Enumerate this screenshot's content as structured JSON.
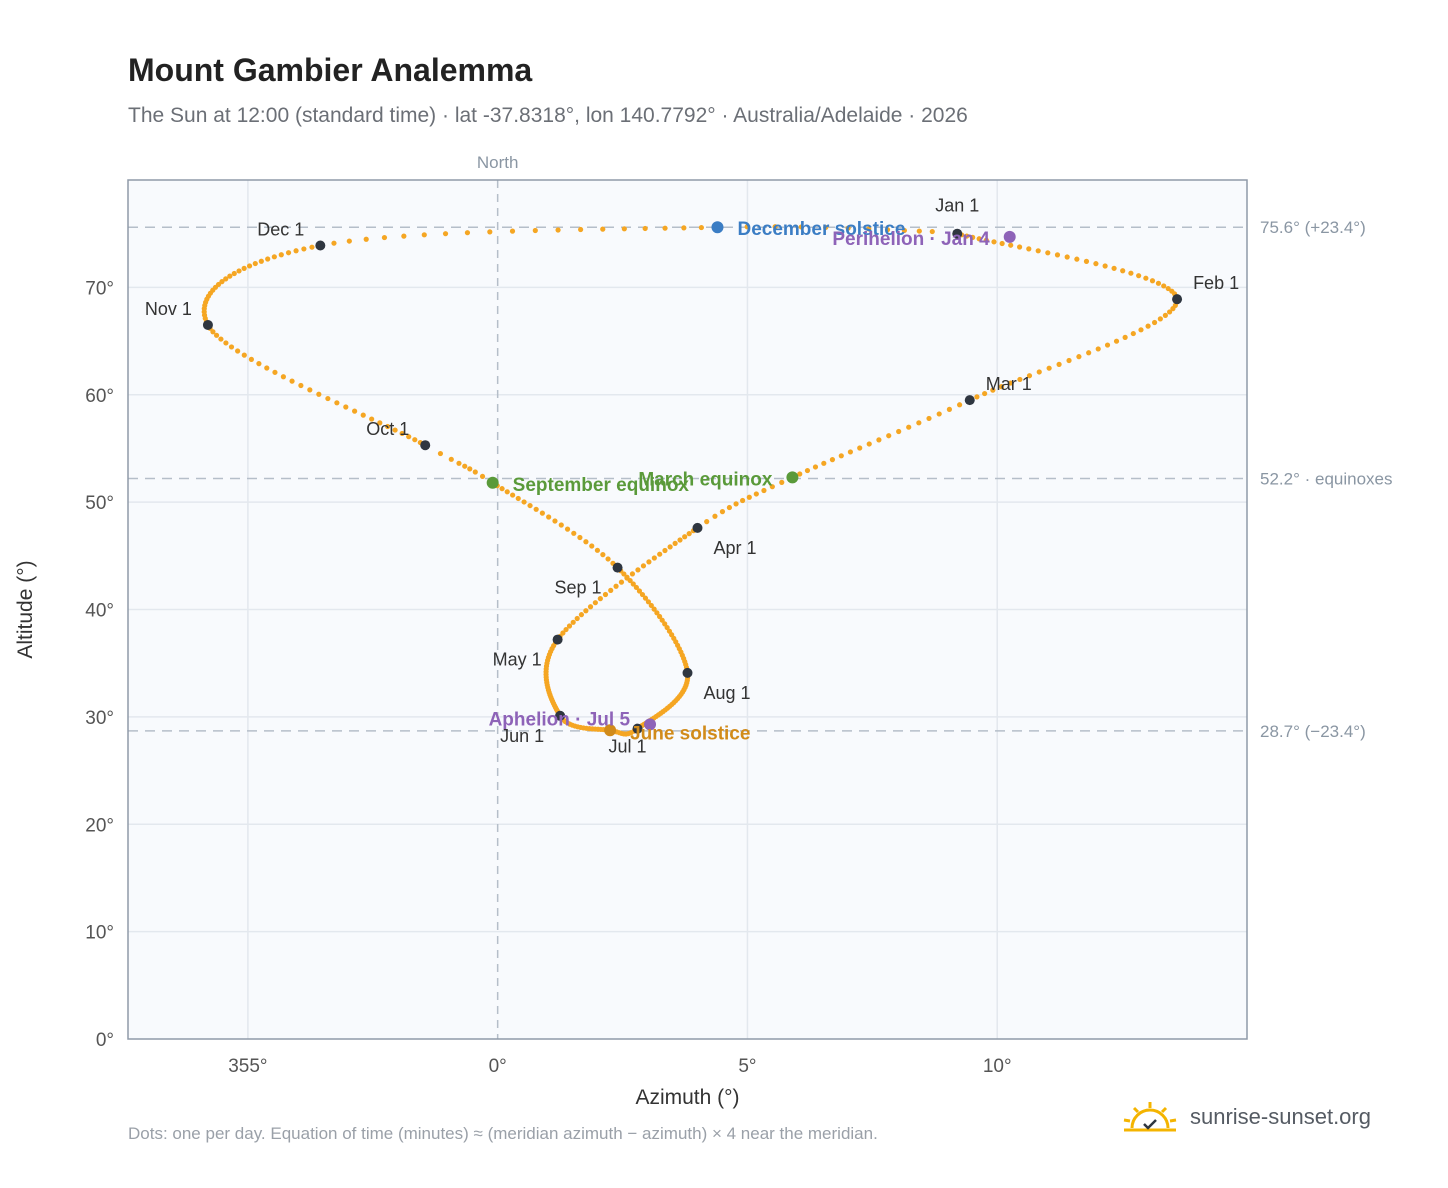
{
  "title": "Mount Gambier Analemma",
  "subtitle": "The Sun at 12:00 (standard time) · lat -37.8318°, lon 140.7792° · Australia/Adelaide · 2026",
  "footer": "Dots: one per day. Equation of time (minutes) ≈ (meridian azimuth − azimuth) × 4 near the meridian.",
  "brand": "sunrise-sunset.org",
  "colors": {
    "curve": "#f5a623",
    "month_marker": "#2f3640",
    "december_solstice": "#3b7dc4",
    "june_solstice": "#d18b1a",
    "equinox": "#5a9a3a",
    "apsis": "#8e63b8",
    "reference_line": "#b5bec9"
  },
  "chart_data": {
    "type": "scatter",
    "xlabel": "Azimuth (°)",
    "ylabel": "Altitude (°)",
    "xlim": [
      352.6,
      15.0
    ],
    "ylim": [
      0,
      80
    ],
    "x_ticks": [
      "355°",
      "0°",
      "5°",
      "10°"
    ],
    "y_ticks": [
      "0°",
      "10°",
      "20°",
      "30°",
      "40°",
      "50°",
      "60°",
      "70°"
    ],
    "north_label": "North",
    "reference_lines": [
      {
        "altitude": 75.6,
        "label": "75.6° (+23.4°)"
      },
      {
        "altitude": 52.2,
        "label": "52.2° · equinoxes"
      },
      {
        "altitude": 28.7,
        "label": "28.7° (−23.4°)"
      }
    ],
    "curve_key_points": [
      {
        "day": 1,
        "azimuth": 9.2,
        "altitude": 75.0
      },
      {
        "day": 32,
        "azimuth": 13.6,
        "altitude": 68.9
      },
      {
        "day": 60,
        "azimuth": 9.45,
        "altitude": 59.5
      },
      {
        "day": 79,
        "azimuth": 5.9,
        "altitude": 52.3
      },
      {
        "day": 91,
        "azimuth": 4.0,
        "altitude": 47.6
      },
      {
        "day": 121,
        "azimuth": 1.2,
        "altitude": 37.2
      },
      {
        "day": 152,
        "azimuth": 1.25,
        "altitude": 30.1
      },
      {
        "day": 172,
        "azimuth": 2.25,
        "altitude": 28.75
      },
      {
        "day": 182,
        "azimuth": 2.8,
        "altitude": 28.9
      },
      {
        "day": 213,
        "azimuth": 3.8,
        "altitude": 34.1
      },
      {
        "day": 244,
        "azimuth": 2.4,
        "altitude": 43.9
      },
      {
        "day": 266,
        "azimuth": -0.1,
        "altitude": 51.8
      },
      {
        "day": 274,
        "azimuth": -1.45,
        "altitude": 55.3
      },
      {
        "day": 305,
        "azimuth": -5.8,
        "altitude": 66.5
      },
      {
        "day": 335,
        "azimuth": -3.55,
        "altitude": 73.9
      },
      {
        "day": 355,
        "azimuth": 4.4,
        "altitude": 75.6
      },
      {
        "day": 365,
        "azimuth": 8.7,
        "altitude": 75.2
      }
    ],
    "month_markers": [
      {
        "label": "Jan 1",
        "azimuth": 9.2,
        "altitude": 75.0,
        "label_pos": "above"
      },
      {
        "label": "Feb 1",
        "azimuth": 13.6,
        "altitude": 68.9,
        "label_pos": "upper-right"
      },
      {
        "label": "Mar 1",
        "azimuth": 9.45,
        "altitude": 59.5,
        "label_pos": "upper-right"
      },
      {
        "label": "Apr 1",
        "azimuth": 4.0,
        "altitude": 47.6,
        "label_pos": "lower-right"
      },
      {
        "label": "May 1",
        "azimuth": 1.2,
        "altitude": 37.2,
        "label_pos": "lower-left"
      },
      {
        "label": "Jun 1",
        "azimuth": 1.25,
        "altitude": 30.1,
        "label_pos": "lower-left"
      },
      {
        "label": "Jul 1",
        "azimuth": 2.8,
        "altitude": 28.9,
        "label_pos": "below"
      },
      {
        "label": "Aug 1",
        "azimuth": 3.8,
        "altitude": 34.1,
        "label_pos": "lower-right"
      },
      {
        "label": "Sep 1",
        "azimuth": 2.4,
        "altitude": 43.9,
        "label_pos": "lower-left"
      },
      {
        "label": "Oct 1",
        "azimuth": -1.45,
        "altitude": 55.3,
        "label_pos": "upper-left"
      },
      {
        "label": "Nov 1",
        "azimuth": -5.8,
        "altitude": 66.5,
        "label_pos": "upper-left"
      },
      {
        "label": "Dec 1",
        "azimuth": -3.55,
        "altitude": 73.9,
        "label_pos": "upper-left"
      }
    ],
    "events": [
      {
        "label": "December solstice",
        "azimuth": 4.4,
        "altitude": 75.6,
        "color": "#3b7dc4"
      },
      {
        "label": "Perihelion · Jan 4",
        "azimuth": 10.25,
        "altitude": 74.7,
        "color": "#8e63b8"
      },
      {
        "label": "March equinox",
        "azimuth": 5.9,
        "altitude": 52.3,
        "color": "#5a9a3a"
      },
      {
        "label": "September equinox",
        "azimuth": -0.1,
        "altitude": 51.8,
        "color": "#5a9a3a"
      },
      {
        "label": "June solstice",
        "azimuth": 2.25,
        "altitude": 28.75,
        "color": "#d18b1a"
      },
      {
        "label": "Aphelion · Jul 5",
        "azimuth": 3.05,
        "altitude": 29.3,
        "color": "#8e63b8"
      }
    ]
  }
}
